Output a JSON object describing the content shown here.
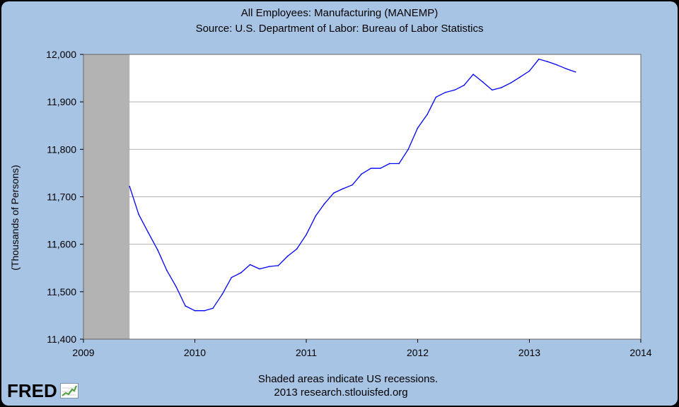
{
  "header": {
    "title": "All Employees: Manufacturing (MANEMP)",
    "subtitle": "Source: U.S. Department of Labor: Bureau of Labor Statistics"
  },
  "footer": {
    "note": "Shaded areas indicate US recessions.",
    "credit": "2013 research.stlouisfed.org",
    "logo_text": "FRED",
    "logo_icon": "line-chart-icon"
  },
  "colors": {
    "background": "#a8c4e4",
    "plot_area": "#ffffff",
    "line": "#0000ff",
    "recession": "#b3b3b3",
    "grid": "#b3b3b3"
  },
  "chart_data": {
    "type": "line",
    "title": "All Employees: Manufacturing (MANEMP)",
    "subtitle": "Source: U.S. Department of Labor: Bureau of Labor Statistics",
    "xlabel": "",
    "ylabel": "(Thousands of Persons)",
    "xlim": [
      "2009-01-01",
      "2014-01-01"
    ],
    "ylim": [
      11400,
      12000
    ],
    "x_ticks": [
      "2009",
      "2010",
      "2011",
      "2012",
      "2013",
      "2014"
    ],
    "y_ticks": [
      "11,400",
      "11,500",
      "11,600",
      "11,700",
      "11,800",
      "11,900",
      "12,000"
    ],
    "grid": "horizontal",
    "recessions": [
      {
        "start": "2009-01-01",
        "end": "2009-06-01"
      }
    ],
    "series": [
      {
        "x": [
          "2009-06-01",
          "2009-07-01",
          "2009-08-01",
          "2009-09-01",
          "2009-10-01",
          "2009-11-01",
          "2009-12-01",
          "2010-01-01",
          "2010-02-01",
          "2010-03-01",
          "2010-04-01",
          "2010-05-01",
          "2010-06-01",
          "2010-07-01",
          "2010-08-01",
          "2010-09-01",
          "2010-10-01",
          "2010-11-01",
          "2010-12-01",
          "2011-01-01",
          "2011-02-01",
          "2011-03-01",
          "2011-04-01",
          "2011-05-01",
          "2011-06-01",
          "2011-07-01",
          "2011-08-01",
          "2011-09-01",
          "2011-10-01",
          "2011-11-01",
          "2011-12-01",
          "2012-01-01",
          "2012-02-01",
          "2012-03-01",
          "2012-04-01",
          "2012-05-01",
          "2012-06-01",
          "2012-07-01",
          "2012-08-01",
          "2012-09-01",
          "2012-10-01",
          "2012-11-01",
          "2012-12-01",
          "2013-01-01",
          "2013-02-01",
          "2013-03-01",
          "2013-04-01",
          "2013-05-01",
          "2013-06-01"
        ],
        "values": [
          11722,
          11663,
          11625,
          11588,
          11545,
          11510,
          11470,
          11460,
          11460,
          11465,
          11495,
          11530,
          11540,
          11557,
          11548,
          11553,
          11555,
          11575,
          11590,
          11620,
          11660,
          11685,
          11708,
          11717,
          11725,
          11748,
          11760,
          11760,
          11770,
          11770,
          11800,
          11845,
          11873,
          11910,
          11920,
          11925,
          11935,
          11958,
          11942,
          11925,
          11930,
          11940,
          11952,
          11965,
          11990,
          11985,
          11978,
          11970,
          11963
        ]
      }
    ]
  }
}
